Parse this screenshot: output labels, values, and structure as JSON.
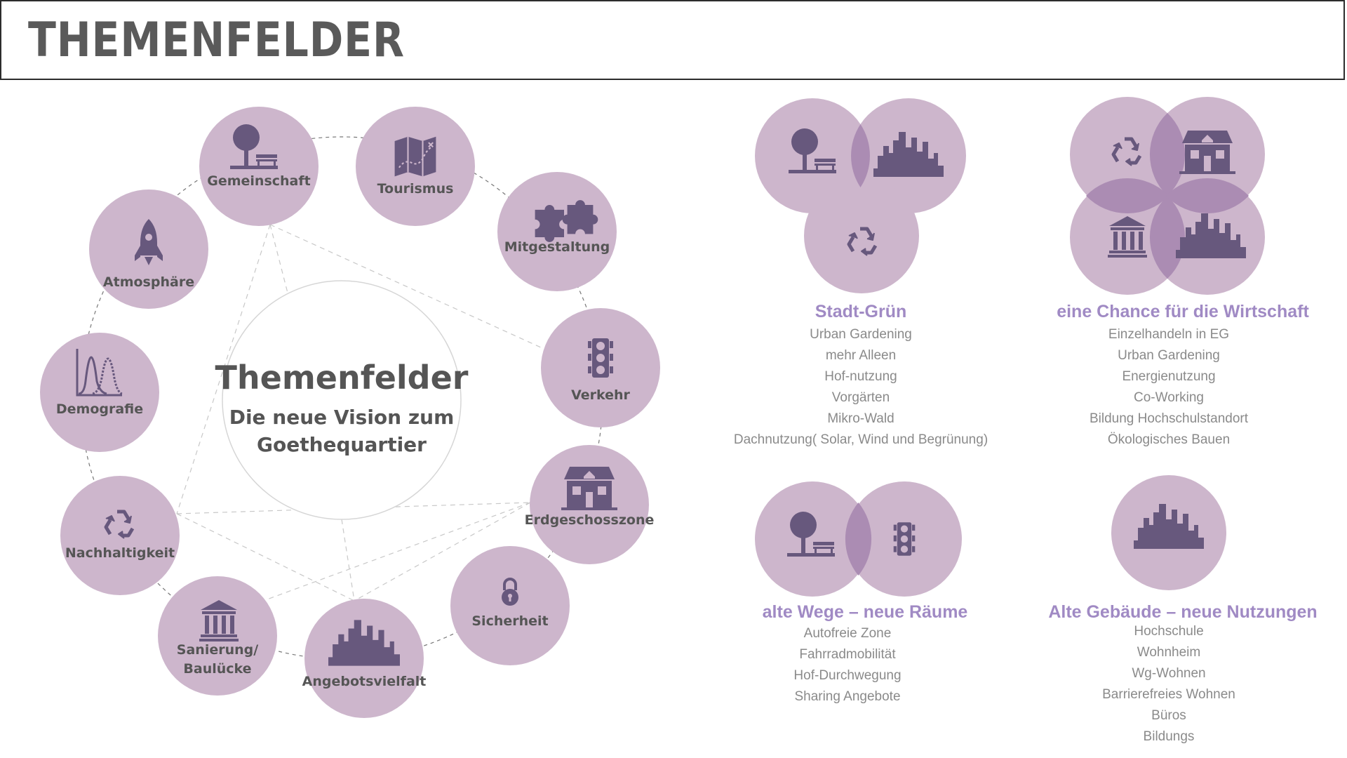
{
  "header": {
    "title": "THEMENFELDER"
  },
  "center": {
    "title": "Themenfelder",
    "subtitle_line1": "Die neue Vision zum",
    "subtitle_line2": "Goethequartier"
  },
  "topics": [
    "Gemeinschaft",
    "Tourismus",
    "Mitgestaltung",
    "Verkehr",
    "Erdgeschosszone",
    "Sicherheit",
    "Angebotsvielfalt",
    "Sanierung/",
    "Baulücke",
    "Nachhaltigkeit",
    "Demografie",
    "Atmosphäre"
  ],
  "panels": [
    {
      "title": "Stadt-Grün",
      "items": [
        "Urban Gardening",
        "mehr Alleen",
        "Hof-nutzung",
        "Vorgärten",
        "Mikro-Wald",
        "Dachnutzung( Solar, Wind und Begrünung)"
      ]
    },
    {
      "title": "eine Chance für die Wirtschaft",
      "items": [
        "Einzelhandeln in EG",
        "Urban Gardening",
        "Energienutzung",
        "Co-Working",
        "Bildung Hochschulstandort",
        "Ökologisches Bauen"
      ]
    },
    {
      "title": "alte Wege – neue Räume",
      "items": [
        "Autofreie Zone",
        "Fahrradmobilität",
        "Hof-Durchwegung",
        "Sharing Angebote"
      ]
    },
    {
      "title": "Alte Gebäude – neue Nutzungen",
      "items": [
        "Hochschule",
        "Wohnheim",
        "Wg-Wohnen",
        "Barrierefreies Wohnen",
        "Büros",
        "Bildungs"
      ]
    }
  ],
  "colors": {
    "circle": "#cdb6cc",
    "circle_overlap": "#ab8cb3",
    "icon": "#67587d",
    "label": "#555555",
    "accent": "#a08ac4"
  }
}
